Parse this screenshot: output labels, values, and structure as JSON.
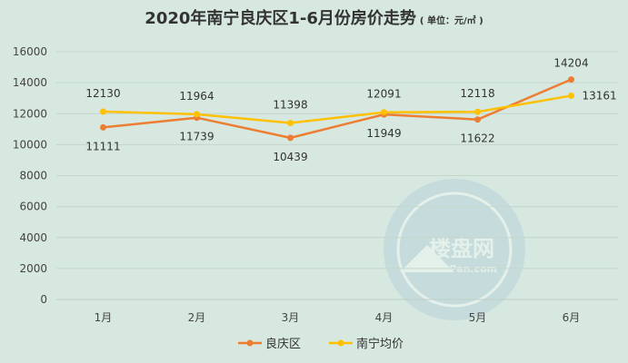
{
  "chart_data": {
    "type": "line",
    "title": "2020年南宁良庆区1-6月份房价走势",
    "unit_note": "( 单位：元/㎡ )",
    "categories": [
      "1月",
      "2月",
      "3月",
      "4月",
      "5月",
      "6月"
    ],
    "series": [
      {
        "name": "良庆区",
        "values": [
          11111,
          11739,
          10439,
          11949,
          11622,
          14204
        ],
        "color": "#ed7d31"
      },
      {
        "name": "南宁均价",
        "values": [
          12130,
          11964,
          11398,
          12091,
          12118,
          13161
        ],
        "color": "#ffc000"
      }
    ],
    "ylim": [
      0,
      16000
    ],
    "yticks": [
      0,
      2000,
      4000,
      6000,
      8000,
      10000,
      12000,
      14000,
      16000
    ],
    "grid": "horizontal",
    "legend": "bottom-center",
    "watermark": {
      "text": "楼盘网",
      "subtext": "LouPan.com"
    }
  }
}
